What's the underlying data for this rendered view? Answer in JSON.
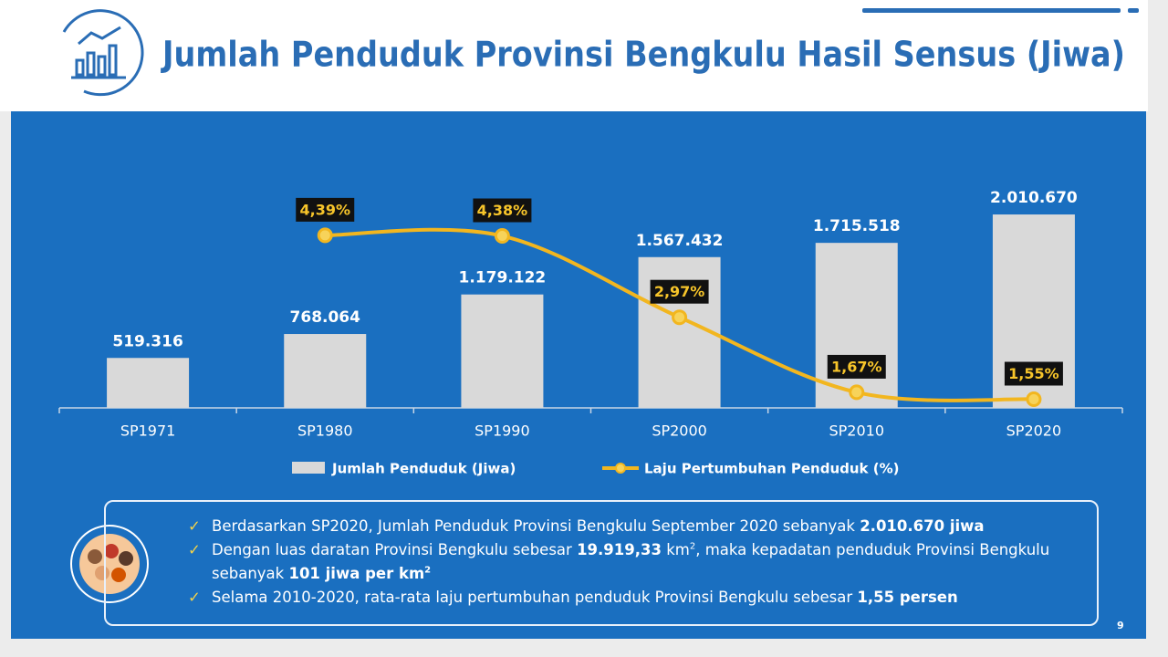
{
  "chart_data": {
    "type": "bar",
    "title": "Jumlah Penduduk Provinsi Bengkulu Hasil Sensus (Jiwa)",
    "categories": [
      "SP1971",
      "SP1980",
      "SP1990",
      "SP2000",
      "SP2010",
      "SP2020"
    ],
    "series": [
      {
        "name": "Jumlah Penduduk (Jiwa)",
        "type": "bar",
        "color": "#d9d9d9",
        "values": [
          519316,
          768064,
          1179122,
          1567432,
          1715518,
          2010670
        ],
        "value_labels": [
          "519.316",
          "768.064",
          "1.179.122",
          "1.567.432",
          "1.715.518",
          "2.010.670"
        ]
      },
      {
        "name": "Laju Pertumbuhan Penduduk (%)",
        "type": "line",
        "color": "#f2b61f",
        "axis": "y2",
        "values": [
          null,
          4.39,
          4.38,
          2.97,
          1.67,
          1.55
        ],
        "value_labels": [
          null,
          "4,39%",
          "4,38%",
          "2,97%",
          "1,67%",
          "1,55%"
        ]
      }
    ],
    "ylim": [
      0,
      2400000
    ],
    "y2lim": [
      1.4,
      5.4
    ],
    "grid": false,
    "legend": "bottom"
  },
  "notes": [
    [
      "Berdasarkan SP2020, Jumlah Penduduk Provinsi Bengkulu September 2020 sebanyak ",
      "2.010.670 jiwa"
    ],
    [
      "Dengan luas daratan Provinsi Bengkulu sebesar ",
      "19.919,33",
      " km",
      "2",
      ", maka kepadatan penduduk Provinsi Bengkulu sebanyak ",
      "101 jiwa per km",
      "2"
    ],
    [
      "Selama 2010-2020, rata-rata laju pertumbuhan penduduk Provinsi Bengkulu sebesar ",
      "1,55 persen"
    ]
  ],
  "page_number": "9"
}
